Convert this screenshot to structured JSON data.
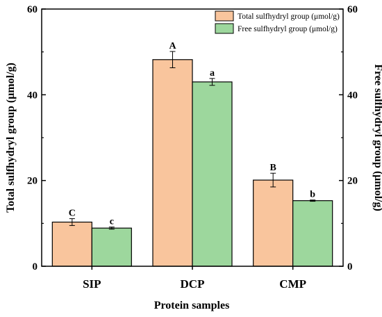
{
  "chart_data": {
    "type": "bar",
    "categories": [
      "SIP",
      "DCP",
      "CMP"
    ],
    "xlabel": "Protein samples",
    "ylabel_left": "Total sulfhydryl group (μmol/g)",
    "ylabel_right": "Free sulfhydryl group (μmol/g)",
    "ylim": [
      0,
      60
    ],
    "yticks": [
      0,
      20,
      40,
      60
    ],
    "series": [
      {
        "name": "Total sulfhydryl group (μmol/g)",
        "values": [
          10.3,
          48.2,
          20.1
        ],
        "errors": [
          0.8,
          1.9,
          1.6
        ],
        "letters": [
          "C",
          "A",
          "B"
        ],
        "color": "#F9C59D"
      },
      {
        "name": "Free sulfhydryl group (μmol/g)",
        "values": [
          8.9,
          43.0,
          15.3
        ],
        "errors": [
          0.25,
          0.8,
          0.15
        ],
        "letters": [
          "c",
          "a",
          "b"
        ],
        "color": "#9DD79D"
      }
    ],
    "legend_position": "top-right",
    "grid": false
  }
}
